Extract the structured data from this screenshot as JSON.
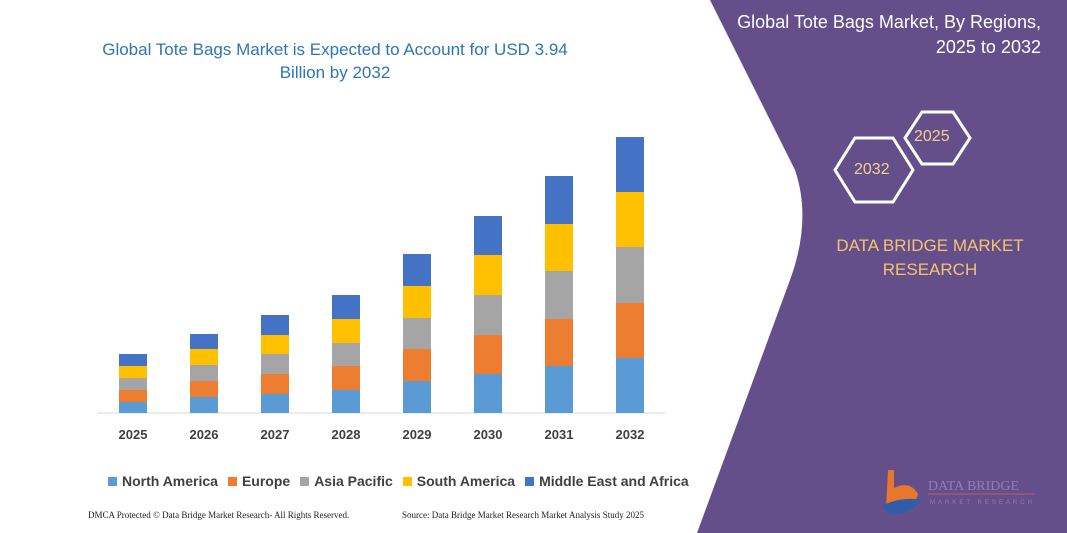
{
  "chart_data": {
    "type": "bar",
    "stacked": true,
    "title": "Global Tote Bags Market is Expected to Account for USD 3.94 Billion by 2032",
    "categories": [
      "2025",
      "2026",
      "2027",
      "2028",
      "2029",
      "2030",
      "2031",
      "2032"
    ],
    "series": [
      {
        "name": "North America",
        "color": "#5b9bd5",
        "values": [
          11,
          16,
          19,
          23,
          32,
          39,
          47,
          55
        ]
      },
      {
        "name": "Europe",
        "color": "#ed7d31",
        "values": [
          12,
          16,
          20,
          24,
          32,
          39,
          47,
          55
        ]
      },
      {
        "name": "Asia Pacific",
        "color": "#a5a5a5",
        "values": [
          12,
          16,
          20,
          23,
          31,
          40,
          48,
          56
        ]
      },
      {
        "name": "South America",
        "color": "#ffc000",
        "values": [
          12,
          16,
          19,
          24,
          32,
          40,
          47,
          55
        ]
      },
      {
        "name": "Middle East and Africa",
        "color": "#4472c4",
        "values": [
          12,
          15,
          20,
          24,
          32,
          39,
          48,
          55
        ]
      }
    ],
    "xlabel": "",
    "ylabel": "",
    "ylim": [
      0,
      300
    ],
    "grid": false,
    "legend": "bottom"
  },
  "footer": {
    "left": "DMCA Protected © Data Bridge Market Research- All Rights Reserved.",
    "right": "Source: Data Bridge Market Research Market Analysis Study 2025"
  },
  "panel": {
    "title": "Global Tote Bags Market, By Regions, 2025 to 2032",
    "hex_end": "2032",
    "hex_start": "2025",
    "brand": "DATA BRIDGE MARKET RESEARCH",
    "logo_text": "DATA BRIDGE MARKET RESEARCH",
    "color": "#654f8b"
  }
}
